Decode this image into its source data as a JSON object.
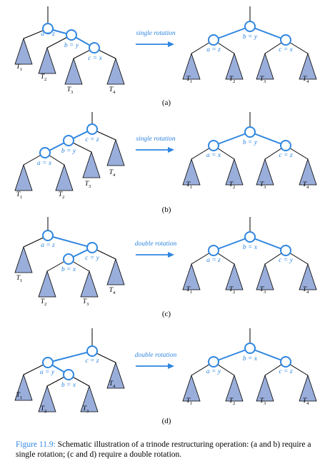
{
  "panels": [
    {
      "label": "(a)",
      "arrow_text": "single rotation",
      "before": {
        "nodes": [
          "a = z",
          "b = y",
          "c = x"
        ],
        "subtrees": [
          {
            "name": "T",
            "sub": "1"
          },
          {
            "name": "T",
            "sub": "2"
          },
          {
            "name": "T",
            "sub": "3"
          },
          {
            "name": "T",
            "sub": "4"
          }
        ]
      },
      "after": {
        "nodes": [
          "b = y",
          "a = z",
          "c = x"
        ],
        "subtrees": [
          {
            "name": "T",
            "sub": "1"
          },
          {
            "name": "T",
            "sub": "2"
          },
          {
            "name": "T",
            "sub": "3"
          },
          {
            "name": "T",
            "sub": "4"
          }
        ]
      }
    },
    {
      "label": "(b)",
      "arrow_text": "single rotation",
      "before": {
        "nodes": [
          "c = z",
          "b = y",
          "a = x"
        ],
        "subtrees": [
          {
            "name": "T",
            "sub": "1"
          },
          {
            "name": "T",
            "sub": "2"
          },
          {
            "name": "T",
            "sub": "3"
          },
          {
            "name": "T",
            "sub": "4"
          }
        ]
      },
      "after": {
        "nodes": [
          "b = y",
          "a = x",
          "c = z"
        ],
        "subtrees": [
          {
            "name": "T",
            "sub": "1"
          },
          {
            "name": "T",
            "sub": "2"
          },
          {
            "name": "T",
            "sub": "3"
          },
          {
            "name": "T",
            "sub": "4"
          }
        ]
      }
    },
    {
      "label": "(c)",
      "arrow_text": "double rotation",
      "before": {
        "nodes": [
          "a = z",
          "c = y",
          "b = x"
        ],
        "subtrees": [
          {
            "name": "T",
            "sub": "1"
          },
          {
            "name": "T",
            "sub": "2"
          },
          {
            "name": "T",
            "sub": "3"
          },
          {
            "name": "T",
            "sub": "4"
          }
        ]
      },
      "after": {
        "nodes": [
          "b = x",
          "a = z",
          "c = y"
        ],
        "subtrees": [
          {
            "name": "T",
            "sub": "1"
          },
          {
            "name": "T",
            "sub": "2"
          },
          {
            "name": "T",
            "sub": "3"
          },
          {
            "name": "T",
            "sub": "4"
          }
        ]
      }
    },
    {
      "label": "(d)",
      "arrow_text": "double rotation",
      "before": {
        "nodes": [
          "c = z",
          "a = y",
          "b = x"
        ],
        "subtrees": [
          {
            "name": "T",
            "sub": "1"
          },
          {
            "name": "T",
            "sub": "2"
          },
          {
            "name": "T",
            "sub": "3"
          },
          {
            "name": "T",
            "sub": "4"
          }
        ]
      },
      "after": {
        "nodes": [
          "b = x",
          "a = y",
          "c = z"
        ],
        "subtrees": [
          {
            "name": "T",
            "sub": "1"
          },
          {
            "name": "T",
            "sub": "2"
          },
          {
            "name": "T",
            "sub": "3"
          },
          {
            "name": "T",
            "sub": "4"
          }
        ]
      }
    }
  ],
  "caption": {
    "figure_number": "Figure 11.9:",
    "text": "Schematic illustration of a trinode restructuring operation: (a and b) require a single rotation; (c and d) require a double rotation."
  },
  "colors": {
    "accent": "#2f86e0",
    "subtree_fill": "#9aaedb"
  }
}
